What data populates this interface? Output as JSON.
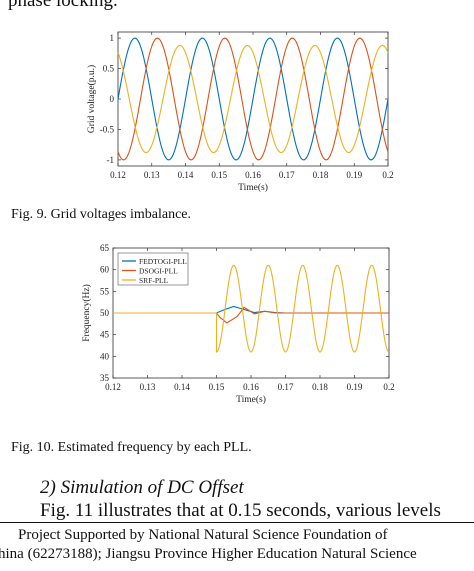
{
  "top_text": "phase locking.",
  "figure9": {
    "caption": "Fig. 9.   Grid voltages imbalance.",
    "chart_data": {
      "type": "line",
      "title": "",
      "xlabel": "Time(s)",
      "ylabel": "Grid voltage(p.u.)",
      "xlim": [
        0.12,
        0.2
      ],
      "ylim": [
        -1.1,
        1.1
      ],
      "x_ticks": [
        "0.12",
        "0.13",
        "0.14",
        "0.15",
        "0.16",
        "0.17",
        "0.18",
        "0.19",
        "0.2"
      ],
      "y_ticks": [
        "1",
        "0.5",
        "0",
        "-0.5",
        "-1"
      ],
      "grid": false,
      "legend": "none",
      "frequency_hz": 50,
      "series": [
        {
          "color": "#0072BD",
          "amplitude": 1.0,
          "phase_deg": 0
        },
        {
          "color": "#D95319",
          "amplitude": 1.0,
          "phase_deg": -120
        },
        {
          "color": "#EDB120",
          "amplitude": 0.88,
          "phase_deg": 120
        }
      ]
    }
  },
  "figure10": {
    "caption": "Fig. 10. Estimated frequency by each PLL.",
    "chart_data": {
      "type": "line",
      "title": "",
      "xlabel": "Time(s)",
      "ylabel": "Frequency(Hz)",
      "xlim": [
        0.12,
        0.2
      ],
      "ylim": [
        35,
        65
      ],
      "x_ticks": [
        "0.12",
        "0.13",
        "0.14",
        "0.15",
        "0.16",
        "0.17",
        "0.18",
        "0.19",
        "0.2"
      ],
      "y_ticks": [
        "65",
        "60",
        "55",
        "50",
        "45",
        "40",
        "35"
      ],
      "grid": false,
      "legend": "top-left",
      "event_time": 0.15,
      "series": [
        {
          "name": "FEDTOGI-PLL",
          "color": "#0072BD",
          "x": [
            0.12,
            0.15,
            0.152,
            0.155,
            0.158,
            0.161,
            0.164,
            0.167,
            0.17,
            0.2
          ],
          "y": [
            50,
            50,
            50.7,
            51.5,
            50.8,
            50.1,
            50.4,
            50.1,
            50,
            50
          ]
        },
        {
          "name": "DSOGI-PLL",
          "color": "#D95319",
          "x": [
            0.12,
            0.15,
            0.151,
            0.153,
            0.156,
            0.158,
            0.161,
            0.164,
            0.167,
            0.2
          ],
          "y": [
            50,
            50,
            49,
            47.7,
            49.2,
            51.3,
            49.8,
            50.4,
            50,
            50
          ]
        },
        {
          "name": "SRF-PLL",
          "color": "#EDB120",
          "base": 51,
          "amplitude": 10,
          "start": 0.15,
          "frequency_hz": 100,
          "x": [
            0.12,
            0.15
          ],
          "y": [
            50,
            50
          ]
        }
      ]
    }
  },
  "section": {
    "number": "2)",
    "title": "Simulation of DC Offset",
    "paragraph": "Fig. 11 illustrates that at 0.15 seconds, various levels"
  },
  "footnote": {
    "line1": "Project Supported by National Natural Science Foundation of",
    "line2": "hina (62273188); Jiangsu Province Higher Education Natural Science"
  }
}
